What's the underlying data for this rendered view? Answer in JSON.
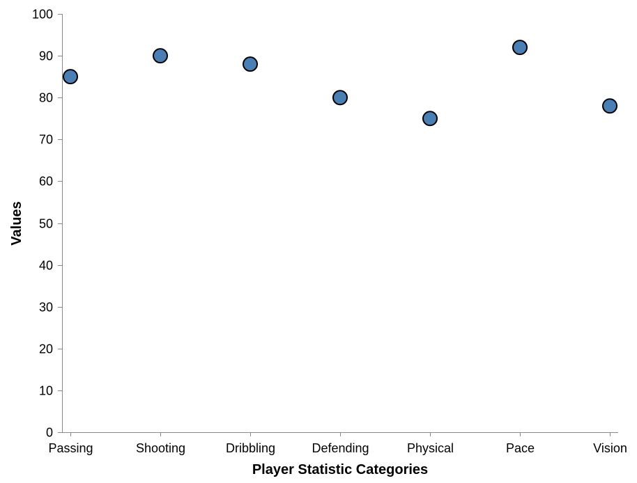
{
  "chart_data": {
    "type": "scatter",
    "title": "",
    "xlabel": "Player Statistic Categories",
    "ylabel": "Values",
    "categories": [
      "Passing",
      "Shooting",
      "Dribbling",
      "Defending",
      "Physical",
      "Pace",
      "Vision"
    ],
    "values": [
      85,
      90,
      88,
      80,
      75,
      92,
      78
    ],
    "ylim": [
      0,
      100
    ],
    "yticks": [
      0,
      10,
      20,
      30,
      40,
      50,
      60,
      70,
      80,
      90,
      100
    ],
    "grid": false,
    "legend": "none",
    "colors": {
      "point_fill": "#4a7fb5",
      "point_stroke": "#000000",
      "axis": "#888888"
    }
  }
}
